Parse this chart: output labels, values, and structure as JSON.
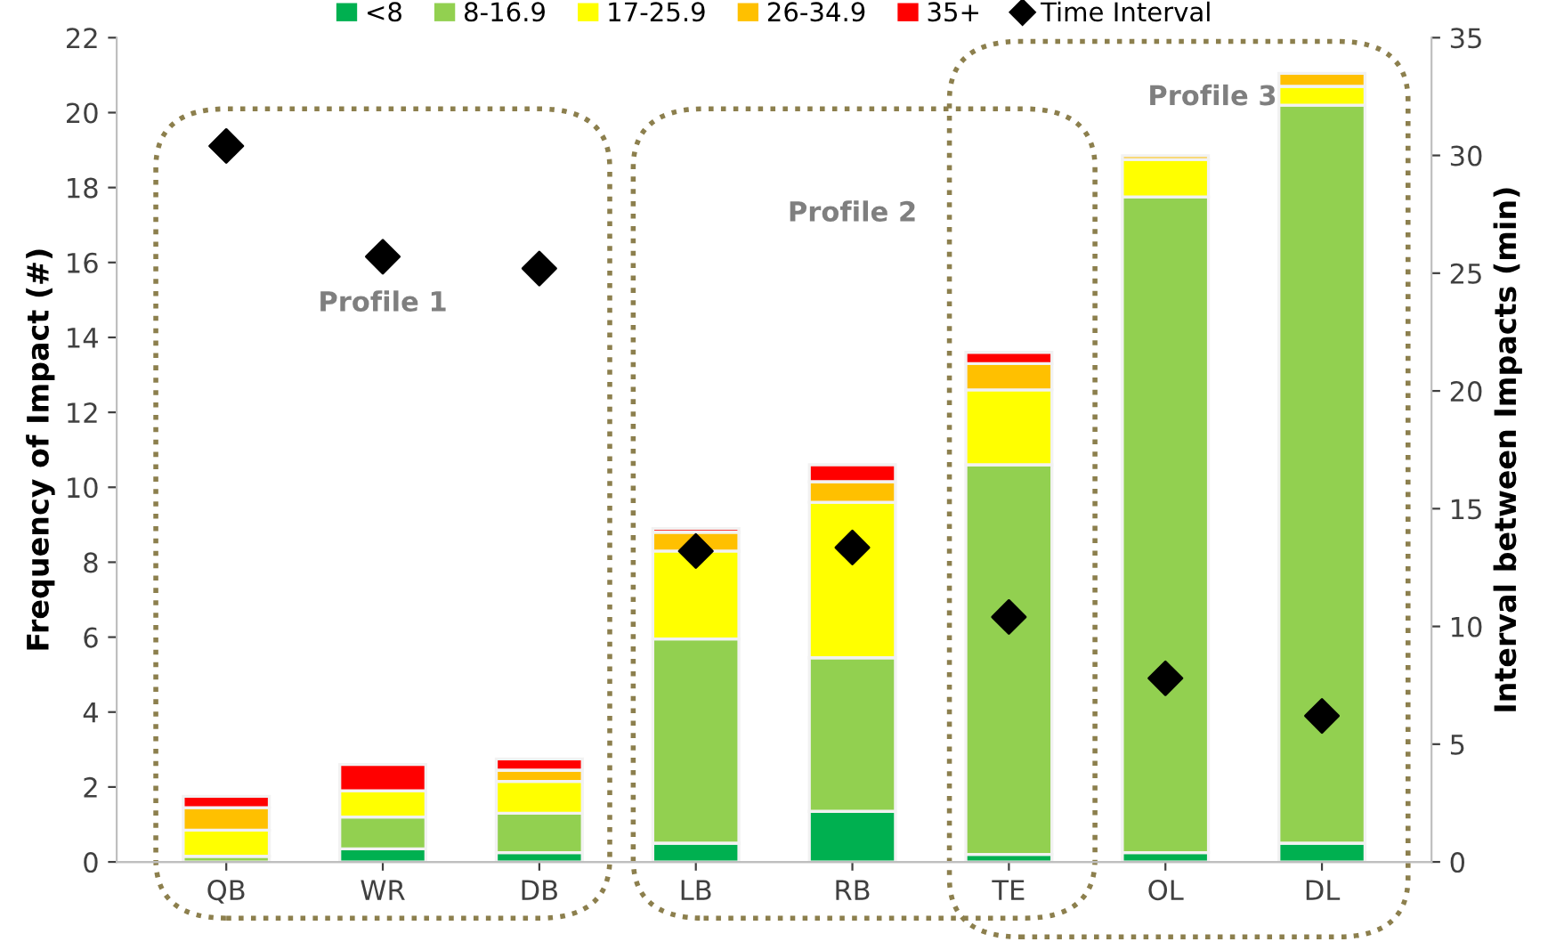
{
  "chart_data": {
    "type": "bar",
    "stacked": true,
    "categories": [
      "QB",
      "WR",
      "DB",
      "LB",
      "RB",
      "TE",
      "OL",
      "DL"
    ],
    "ylabel": "Frequency of Impact (#)",
    "y2label": "Interval between Impacts (min)",
    "ylim": [
      0,
      22
    ],
    "yticks": [
      0,
      2,
      4,
      6,
      8,
      10,
      12,
      14,
      16,
      18,
      20,
      22
    ],
    "y2lim": [
      0,
      35
    ],
    "y2ticks": [
      0,
      5,
      10,
      15,
      20,
      25,
      30,
      35
    ],
    "legend": "top",
    "grid": false,
    "annotations": [
      "Profile 1",
      "Profile 2",
      "Profile 3"
    ],
    "series": [
      {
        "name": "<8",
        "color": "#00b050",
        "values": [
          null,
          0.35,
          0.25,
          0.5,
          1.35,
          0.2,
          0.25,
          0.5
        ]
      },
      {
        "name": "8-16.9",
        "color": "#92d050",
        "values": [
          0.15,
          0.85,
          1.05,
          5.45,
          4.1,
          10.4,
          17.5,
          19.7
        ]
      },
      {
        "name": "17-25.9",
        "color": "#ffff00",
        "values": [
          0.7,
          0.7,
          0.85,
          2.35,
          4.15,
          2.0,
          1.0,
          0.5
        ]
      },
      {
        "name": "26-34.9",
        "color": "#ffc000",
        "values": [
          0.6,
          null,
          0.3,
          0.5,
          0.55,
          0.7,
          0.1,
          0.35
        ]
      },
      {
        "name": "35+",
        "color": "#ff0000",
        "values": [
          0.3,
          0.7,
          0.3,
          0.1,
          0.45,
          0.3,
          null,
          null
        ]
      },
      {
        "name": "Time Interval",
        "type": "scatter",
        "axis": "y2",
        "marker": "diamond",
        "color": "#000000",
        "values": [
          30.4,
          25.7,
          25.2,
          13.2,
          13.35,
          10.4,
          7.8,
          6.2
        ]
      }
    ]
  }
}
